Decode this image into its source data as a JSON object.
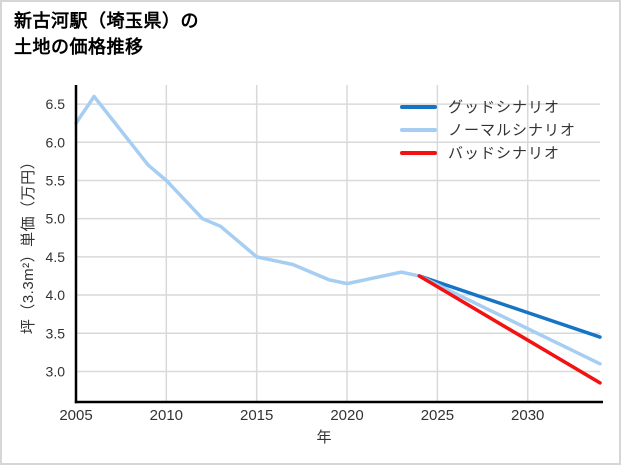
{
  "title": {
    "line1": "新古河駅（埼玉県）の",
    "line2": "土地の価格推移"
  },
  "colors": {
    "good_scenario": "#1674c5",
    "normal_scenario": "#a6cdf2",
    "bad_scenario": "#f31111",
    "historical_line": "#a6cdf2",
    "grid": "#d9d9d9",
    "axis": "#000000",
    "tick_text": "#333333",
    "title_text": "#000000"
  },
  "chart_data": {
    "type": "line",
    "title": "新古河駅（埼玉県）の土地の価格推移",
    "xlabel": "年",
    "ylabel": "坪（3.3m²）単価（万円）",
    "xlim": [
      2005,
      2034
    ],
    "ylim": [
      2.6,
      6.75
    ],
    "x_ticks": [
      2005,
      2010,
      2015,
      2020,
      2025,
      2030
    ],
    "y_ticks": [
      3.0,
      3.5,
      4.0,
      4.5,
      5.0,
      5.5,
      6.0,
      6.5
    ],
    "grid": true,
    "legend_position": "top-right",
    "series": [
      {
        "id": "historical",
        "legend": null,
        "color": "#a6cdf2",
        "x": [
          2005,
          2006,
          2007,
          2008,
          2009,
          2010,
          2011,
          2012,
          2013,
          2014,
          2015,
          2016,
          2017,
          2018,
          2019,
          2020,
          2021,
          2022,
          2023,
          2024
        ],
        "y": [
          6.25,
          6.6,
          6.3,
          6.0,
          5.7,
          5.5,
          5.25,
          5.0,
          4.9,
          4.7,
          4.5,
          4.45,
          4.4,
          4.3,
          4.2,
          4.15,
          4.2,
          4.25,
          4.3,
          4.25
        ]
      },
      {
        "id": "good",
        "legend": "グッドシナリオ",
        "color": "#1674c5",
        "x": [
          2024,
          2034
        ],
        "y": [
          4.25,
          3.45
        ]
      },
      {
        "id": "normal",
        "legend": "ノーマルシナリオ",
        "color": "#a6cdf2",
        "x": [
          2024,
          2034
        ],
        "y": [
          4.25,
          3.1
        ]
      },
      {
        "id": "bad",
        "legend": "バッドシナリオ",
        "color": "#f31111",
        "x": [
          2024,
          2034
        ],
        "y": [
          4.25,
          2.85
        ]
      }
    ]
  }
}
